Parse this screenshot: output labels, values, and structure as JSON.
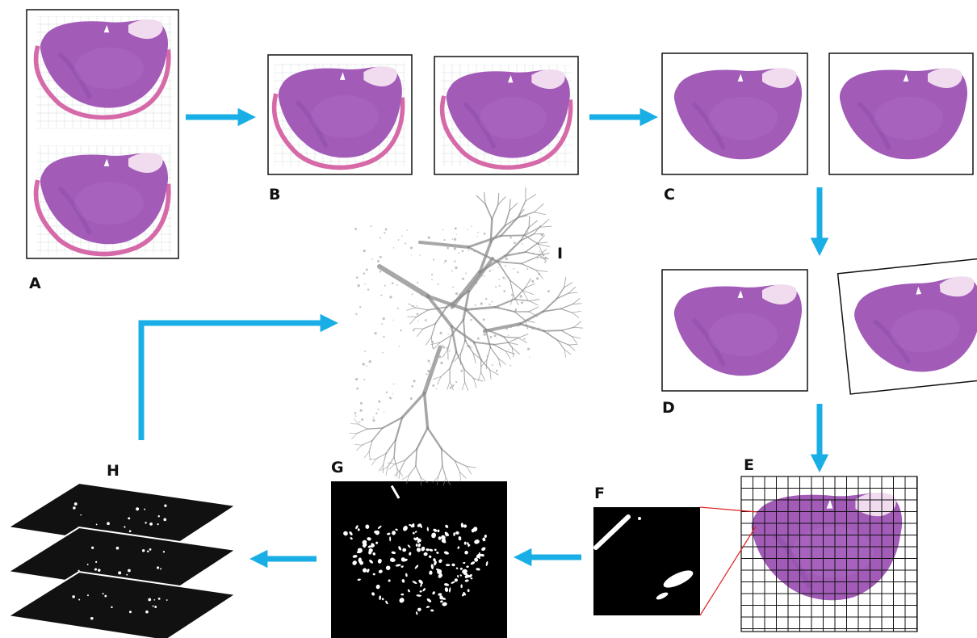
{
  "labels": {
    "a": "A",
    "b": "B",
    "c": "C",
    "d": "D",
    "e": "E",
    "f": "F",
    "g": "G",
    "h": "H",
    "i": "I"
  },
  "colors": {
    "arrow": "#1aaee6",
    "tissue": "#a25cb8",
    "tissue_dark": "#8a4aa6",
    "tissue_edge": "#d66aa8",
    "zoom_line": "#e02020",
    "mask_bg": "#000000",
    "mask_fg": "#ffffff",
    "vessel": "#8a8a8a"
  }
}
